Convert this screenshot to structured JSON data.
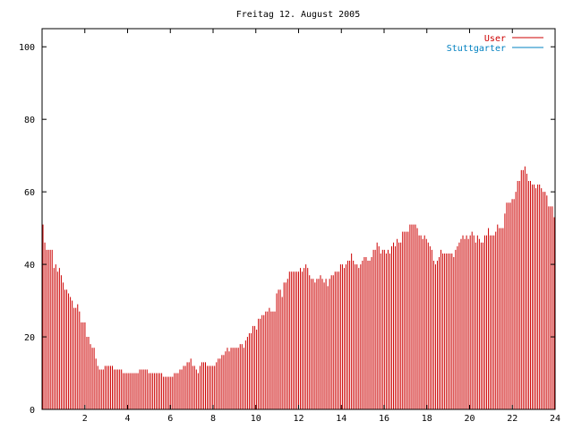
{
  "chart_data": {
    "type": "bar",
    "title": "Freitag 12. August 2005",
    "xlabel": "",
    "ylabel": "",
    "xlim": [
      0,
      24
    ],
    "ylim": [
      0,
      105
    ],
    "x_ticks": [
      "2",
      "4",
      "6",
      "8",
      "10",
      "12",
      "14",
      "16",
      "18",
      "20",
      "22",
      "24"
    ],
    "y_ticks": [
      "0",
      "20",
      "40",
      "60",
      "80",
      "100"
    ],
    "grid": false,
    "legend_position": "top-right",
    "bin_minutes": 5,
    "series": [
      {
        "name": "User",
        "color": "#cc0000",
        "values": [
          51,
          46,
          44,
          44,
          44,
          44,
          39,
          40,
          38,
          39,
          37,
          35,
          33,
          33,
          32,
          31,
          30,
          28,
          28,
          29,
          27,
          24,
          24,
          24,
          20,
          20,
          18,
          17,
          17,
          14,
          12,
          11,
          11,
          11,
          12,
          12,
          12,
          12,
          12,
          11,
          11,
          11,
          11,
          11,
          10,
          10,
          10,
          10,
          10,
          10,
          10,
          10,
          10,
          11,
          11,
          11,
          11,
          11,
          10,
          10,
          10,
          10,
          10,
          10,
          10,
          10,
          9,
          9,
          9,
          9,
          9,
          9,
          10,
          10,
          10,
          11,
          11,
          12,
          12,
          13,
          13,
          14,
          12,
          12,
          11,
          10,
          12,
          13,
          13,
          13,
          12,
          12,
          12,
          12,
          12,
          13,
          14,
          14,
          15,
          15,
          16,
          17,
          16,
          17,
          17,
          17,
          17,
          17,
          18,
          18,
          17,
          19,
          20,
          21,
          21,
          23,
          23,
          22,
          25,
          25,
          26,
          26,
          27,
          27,
          28,
          27,
          27,
          27,
          32,
          33,
          33,
          31,
          35,
          35,
          36,
          38,
          38,
          38,
          38,
          38,
          38,
          39,
          38,
          39,
          40,
          39,
          37,
          36,
          36,
          35,
          36,
          36,
          37,
          36,
          35,
          36,
          34,
          36,
          37,
          37,
          38,
          38,
          38,
          40,
          40,
          39,
          40,
          41,
          41,
          43,
          41,
          40,
          40,
          39,
          40,
          41,
          42,
          42,
          41,
          41,
          42,
          44,
          44,
          46,
          45,
          43,
          44,
          44,
          43,
          44,
          43,
          45,
          46,
          45,
          47,
          46,
          46,
          49,
          49,
          49,
          49,
          51,
          51,
          51,
          51,
          50,
          48,
          48,
          47,
          48,
          47,
          46,
          45,
          44,
          41,
          40,
          41,
          42,
          44,
          43,
          43,
          43,
          43,
          43,
          43,
          42,
          44,
          45,
          46,
          47,
          48,
          47,
          48,
          47,
          48,
          49,
          48,
          46,
          48,
          47,
          46,
          46,
          48,
          48,
          50,
          48,
          48,
          48,
          49,
          51,
          50,
          50,
          50,
          54,
          57,
          57,
          57,
          58,
          58,
          60,
          63,
          63,
          66,
          66,
          67,
          65,
          63,
          63,
          62,
          62,
          61,
          62,
          62,
          61,
          60,
          60,
          59,
          56,
          56,
          56,
          53
        ]
      },
      {
        "name": "Stuttgarter",
        "color": "#0080c0",
        "values": []
      }
    ]
  }
}
